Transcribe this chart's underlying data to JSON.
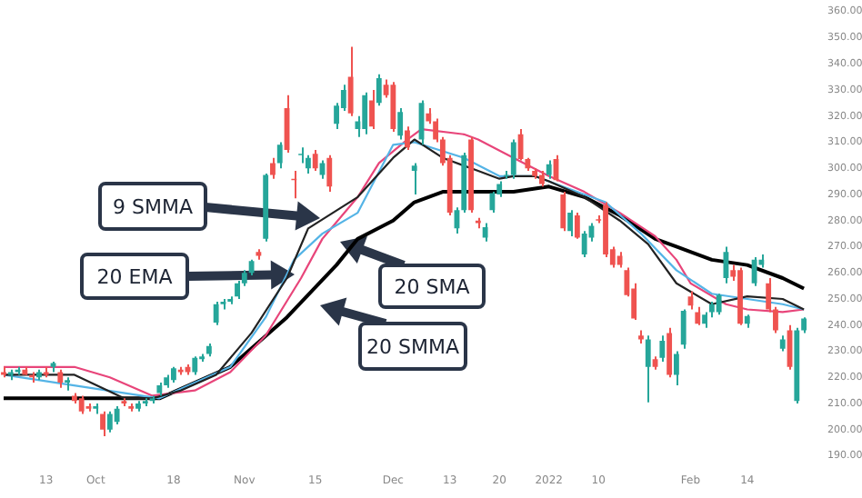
{
  "chart_data": {
    "type": "candlestick",
    "categories": [
      null,
      null,
      null,
      null,
      null,
      null,
      "13",
      null,
      null,
      null,
      null,
      null,
      null,
      "Oct",
      null,
      null,
      null,
      null,
      null,
      null,
      null,
      null,
      null,
      null,
      "18",
      null,
      null,
      null,
      null,
      null,
      null,
      null,
      null,
      null,
      "Nov",
      null,
      null,
      null,
      null,
      null,
      null,
      null,
      null,
      null,
      "15",
      null,
      null,
      null,
      null,
      null,
      null,
      null,
      null,
      null,
      null,
      "Dec",
      null,
      null,
      null,
      null,
      null,
      null,
      null,
      "13",
      null,
      null,
      null,
      null,
      null,
      null,
      "20",
      null,
      null,
      null,
      null,
      null,
      null,
      "2022",
      null,
      null,
      null,
      null,
      null,
      null,
      "10",
      null,
      null,
      null,
      null,
      null,
      null,
      null,
      null,
      null,
      null,
      null,
      null,
      "Feb",
      null,
      null,
      null,
      null,
      null,
      null,
      null,
      "14",
      null,
      null,
      null,
      null,
      null,
      null,
      null,
      null
    ],
    "ohlc": [
      [
        222,
        224,
        220,
        221
      ],
      [
        221,
        223,
        219,
        222
      ],
      [
        222,
        224,
        221,
        223
      ],
      [
        223,
        224,
        221,
        221
      ],
      [
        221,
        222,
        218,
        220
      ],
      [
        220,
        223,
        219,
        222
      ],
      [
        222,
        224,
        220,
        221
      ],
      [
        224,
        226,
        222,
        225.5
      ],
      [
        222,
        223,
        216,
        218
      ],
      [
        218,
        220,
        215,
        219
      ],
      [
        213,
        214,
        210,
        211
      ],
      [
        212,
        213,
        206,
        207
      ],
      [
        209,
        210,
        207,
        208
      ],
      [
        208,
        210,
        206,
        209
      ],
      [
        206,
        207,
        197.5,
        200
      ],
      [
        200,
        207,
        199,
        206
      ],
      [
        203,
        209,
        202,
        208
      ],
      [
        211,
        212,
        209,
        210
      ],
      [
        209,
        210,
        207,
        208
      ],
      [
        208,
        211,
        207,
        210
      ],
      [
        210,
        212,
        209,
        211
      ],
      [
        211,
        213,
        210,
        212
      ],
      [
        214,
        218,
        213,
        217
      ],
      [
        217,
        221,
        216,
        220
      ],
      [
        219,
        224,
        218,
        223.5
      ],
      [
        223,
        224,
        221,
        222
      ],
      [
        224,
        225,
        221,
        222
      ],
      [
        222,
        228,
        221,
        227.5
      ],
      [
        227,
        229,
        226,
        228
      ],
      [
        229,
        233,
        228,
        232
      ],
      [
        241,
        249,
        240,
        248
      ],
      [
        248,
        250,
        246,
        249
      ],
      [
        249,
        251,
        248,
        250
      ],
      [
        251,
        257,
        250,
        256
      ],
      [
        256,
        261,
        255,
        260
      ],
      [
        260,
        265,
        259,
        264.5
      ],
      [
        268,
        269,
        265,
        266.5
      ],
      [
        273,
        298,
        272,
        297.5
      ],
      [
        302,
        304,
        296,
        297.5
      ],
      [
        302,
        310,
        300,
        309
      ],
      [
        323,
        328,
        306,
        307
      ],
      [
        296,
        299,
        288.5,
        295.5
      ],
      [
        305,
        308,
        302,
        305.5
      ],
      [
        300,
        305,
        298,
        304
      ],
      [
        305.5,
        307,
        299,
        300
      ],
      [
        297.5,
        303,
        296,
        302
      ],
      [
        304,
        305,
        291,
        293
      ],
      [
        317,
        325,
        315,
        324
      ],
      [
        323,
        332,
        322,
        330
      ],
      [
        335,
        346.5,
        320,
        321
      ],
      [
        315,
        320,
        312,
        318
      ],
      [
        315,
        329,
        313,
        328
      ],
      [
        326,
        330,
        315,
        316
      ],
      [
        325,
        336,
        324,
        334.5
      ],
      [
        332,
        334,
        327,
        328
      ],
      [
        332,
        333,
        314,
        315
      ],
      [
        312.5,
        323,
        311,
        321.5
      ],
      [
        314.5,
        316,
        307,
        308
      ],
      [
        299,
        302,
        290,
        301
      ],
      [
        311,
        326,
        309,
        325
      ],
      [
        321,
        323,
        317,
        318
      ],
      [
        318,
        319,
        310,
        311
      ],
      [
        311,
        312,
        301,
        302
      ],
      [
        304,
        305,
        282,
        283
      ],
      [
        277,
        285,
        275,
        284
      ],
      [
        284,
        306,
        283,
        305
      ],
      [
        311,
        312,
        283,
        284
      ],
      [
        280,
        281,
        277,
        279
      ],
      [
        273.5,
        279,
        272,
        277.5
      ],
      [
        284,
        291,
        283,
        290.5
      ],
      [
        290,
        295,
        289,
        294
      ],
      [
        297,
        299,
        296,
        297.5
      ],
      [
        297.5,
        311,
        296,
        310
      ],
      [
        313,
        315,
        303,
        303.5
      ],
      [
        303.5,
        304,
        299,
        300
      ],
      [
        299,
        300,
        296,
        297
      ],
      [
        297.5,
        299,
        293,
        294
      ],
      [
        297.5,
        303,
        296,
        301.5
      ],
      [
        303.5,
        305,
        295,
        295.5
      ],
      [
        290,
        291,
        276,
        277
      ],
      [
        276,
        284,
        274,
        283
      ],
      [
        282,
        283,
        273,
        273.5
      ],
      [
        267,
        276,
        266,
        275
      ],
      [
        273.5,
        279,
        272,
        278
      ],
      [
        280.5,
        282,
        279,
        280
      ],
      [
        286,
        287,
        266,
        267
      ],
      [
        269,
        270,
        262,
        263
      ],
      [
        266.5,
        268,
        262,
        263
      ],
      [
        261,
        262,
        251,
        251.5
      ],
      [
        254,
        256,
        242,
        242.5
      ],
      [
        236,
        238,
        233,
        234.5
      ],
      [
        224,
        236,
        210.5,
        234.5
      ],
      [
        227,
        228,
        223,
        224
      ],
      [
        227.5,
        236,
        226,
        234
      ],
      [
        237,
        239,
        220,
        221
      ],
      [
        221,
        230,
        217,
        229
      ],
      [
        232.5,
        246,
        231,
        245.5
      ],
      [
        251,
        253,
        246,
        247.5
      ],
      [
        245,
        247,
        240,
        240.5
      ],
      [
        240.5,
        245,
        239,
        244
      ],
      [
        245,
        249,
        243,
        248
      ],
      [
        245,
        252,
        244,
        251.5
      ],
      [
        258,
        270,
        256,
        268
      ],
      [
        261,
        263,
        257,
        258.5
      ],
      [
        261,
        262,
        240,
        240.5
      ],
      [
        240.5,
        244,
        239,
        243.5
      ],
      [
        256,
        266,
        255,
        265
      ],
      [
        263,
        267,
        262,
        265
      ],
      [
        256,
        258,
        245,
        246
      ],
      [
        246,
        247,
        237,
        238
      ],
      [
        231,
        236,
        230,
        234.5
      ],
      [
        238,
        240,
        223,
        224
      ],
      [
        211,
        239,
        210,
        238
      ],
      [
        238,
        243,
        237,
        242.5
      ]
    ],
    "colors": [
      "#ef5350",
      "#26a69a",
      "#26a69a",
      "#ef5350",
      "#ef5350",
      "#26a69a",
      "#ef5350",
      "#26a69a",
      "#ef5350",
      "#26a69a",
      "#ef5350",
      "#ef5350",
      "#ef5350",
      "#26a69a",
      "#ef5350",
      "#26a69a",
      "#26a69a",
      "#ef5350",
      "#ef5350",
      "#26a69a",
      "#26a69a",
      "#26a69a",
      "#26a69a",
      "#26a69a",
      "#26a69a",
      "#ef5350",
      "#ef5350",
      "#26a69a",
      "#26a69a",
      "#26a69a",
      "#26a69a",
      "#26a69a",
      "#26a69a",
      "#26a69a",
      "#26a69a",
      "#26a69a",
      "#ef5350",
      "#26a69a",
      "#ef5350",
      "#26a69a",
      "#ef5350",
      "#ef5350",
      "#26a69a",
      "#26a69a",
      "#ef5350",
      "#26a69a",
      "#ef5350",
      "#26a69a",
      "#26a69a",
      "#ef5350",
      "#26a69a",
      "#26a69a",
      "#ef5350",
      "#26a69a",
      "#ef5350",
      "#ef5350",
      "#26a69a",
      "#ef5350",
      "#26a69a",
      "#26a69a",
      "#ef5350",
      "#ef5350",
      "#ef5350",
      "#ef5350",
      "#26a69a",
      "#26a69a",
      "#ef5350",
      "#ef5350",
      "#26a69a",
      "#26a69a",
      "#26a69a",
      "#26a69a",
      "#26a69a",
      "#ef5350",
      "#ef5350",
      "#ef5350",
      "#ef5350",
      "#26a69a",
      "#ef5350",
      "#ef5350",
      "#26a69a",
      "#ef5350",
      "#26a69a",
      "#26a69a",
      "#ef5350",
      "#ef5350",
      "#ef5350",
      "#ef5350",
      "#ef5350",
      "#ef5350",
      "#ef5350",
      "#26a69a",
      "#ef5350",
      "#26a69a",
      "#ef5350",
      "#26a69a",
      "#26a69a",
      "#ef5350",
      "#ef5350",
      "#26a69a",
      "#26a69a",
      "#26a69a",
      "#26a69a",
      "#ef5350",
      "#ef5350",
      "#26a69a",
      "#26a69a",
      "#26a69a",
      "#ef5350",
      "#ef5350",
      "#26a69a",
      "#ef5350",
      "#26a69a",
      "#26a69a"
    ],
    "series": [
      {
        "type": "line",
        "color": "#222222",
        "values": [
          221,
          null,
          null,
          null,
          null,
          null,
          null,
          null,
          null,
          null,
          221,
          null,
          null,
          null,
          null,
          null,
          null,
          212,
          null,
          null,
          null,
          212,
          null,
          null,
          null,
          215,
          null,
          null,
          null,
          null,
          221,
          null,
          null,
          null,
          null,
          237,
          null,
          null,
          null,
          null,
          258,
          null,
          null,
          277,
          null,
          null,
          null,
          null,
          null,
          null,
          289,
          null,
          null,
          null,
          null,
          304,
          null,
          null,
          311,
          null,
          null,
          null,
          304,
          null,
          null,
          null,
          null,
          299,
          null,
          null,
          296,
          null,
          297,
          null,
          null,
          297,
          null,
          295,
          null,
          null,
          null,
          null,
          289,
          null,
          null,
          null,
          null,
          280,
          null,
          null,
          null,
          271,
          null,
          null,
          null,
          256,
          null,
          null,
          null,
          null,
          248,
          null,
          null,
          null,
          null,
          251,
          null,
          null,
          null,
          null,
          250,
          null,
          null,
          246
        ]
      },
      {
        "type": "line",
        "color": "#55b4e6",
        "values": [
          221,
          null,
          null,
          null,
          null,
          null,
          null,
          null,
          null,
          null,
          null,
          null,
          null,
          null,
          null,
          null,
          null,
          null,
          null,
          null,
          null,
          null,
          212,
          null,
          null,
          null,
          null,
          null,
          null,
          null,
          null,
          null,
          224,
          null,
          null,
          null,
          null,
          243,
          null,
          null,
          null,
          265,
          null,
          null,
          null,
          275,
          null,
          null,
          null,
          null,
          283,
          null,
          null,
          null,
          null,
          309,
          null,
          null,
          310,
          null,
          null,
          null,
          null,
          null,
          null,
          304,
          null,
          null,
          null,
          null,
          297,
          null,
          null,
          null,
          null,
          297,
          null,
          null,
          null,
          null,
          292,
          null,
          null,
          null,
          null,
          287,
          null,
          null,
          null,
          null,
          275,
          null,
          null,
          null,
          null,
          261,
          null,
          null,
          null,
          null,
          252,
          null,
          null,
          null,
          null,
          250,
          null,
          null,
          null,
          null,
          248,
          null,
          null,
          246
        ]
      },
      {
        "type": "line",
        "color": "#e8457a",
        "values": [
          224,
          null,
          null,
          null,
          null,
          null,
          null,
          null,
          null,
          null,
          224,
          null,
          null,
          null,
          null,
          220,
          null,
          null,
          null,
          null,
          null,
          213,
          null,
          null,
          null,
          null,
          null,
          215,
          null,
          null,
          null,
          null,
          222,
          null,
          null,
          null,
          null,
          236,
          null,
          null,
          null,
          null,
          258,
          null,
          null,
          273,
          null,
          null,
          null,
          null,
          289,
          null,
          null,
          302,
          null,
          null,
          null,
          311,
          null,
          315,
          null,
          null,
          null,
          null,
          null,
          313,
          null,
          311,
          null,
          null,
          null,
          null,
          304,
          null,
          null,
          null,
          null,
          297,
          null,
          null,
          null,
          null,
          291,
          null,
          null,
          null,
          null,
          283,
          null,
          null,
          null,
          null,
          274,
          null,
          null,
          265,
          null,
          256,
          null,
          null,
          null,
          null,
          248,
          null,
          null,
          246,
          null,
          null,
          null,
          null,
          245,
          null,
          null,
          246
        ]
      },
      {
        "type": "line",
        "color": "#000000",
        "values": [
          212,
          null,
          null,
          null,
          null,
          null,
          null,
          null,
          null,
          null,
          null,
          null,
          null,
          null,
          null,
          null,
          null,
          null,
          null,
          null,
          null,
          null,
          212,
          null,
          null,
          null,
          null,
          null,
          null,
          null,
          null,
          null,
          224,
          null,
          null,
          null,
          null,
          null,
          null,
          null,
          243,
          null,
          null,
          null,
          null,
          null,
          null,
          263,
          null,
          null,
          273,
          null,
          null,
          null,
          null,
          280,
          null,
          null,
          287,
          null,
          null,
          null,
          291,
          null,
          null,
          null,
          null,
          291,
          null,
          null,
          null,
          null,
          291,
          null,
          null,
          null,
          null,
          293,
          null,
          null,
          null,
          null,
          289,
          null,
          null,
          null,
          null,
          282,
          null,
          null,
          null,
          null,
          273,
          null,
          null,
          270,
          null,
          null,
          null,
          null,
          265,
          null,
          null,
          null,
          null,
          263,
          null,
          null,
          null,
          null,
          258,
          null,
          null,
          254
        ]
      }
    ],
    "ylim": [
      190,
      360
    ],
    "yticks": [
      {
        "value": 190,
        "label": "190.00"
      },
      {
        "value": 200,
        "label": "200.00"
      },
      {
        "value": 210,
        "label": "210.00"
      },
      {
        "value": 220,
        "label": "220.00"
      },
      {
        "value": 230,
        "label": "230.00"
      },
      {
        "value": 240,
        "label": "240.00"
      },
      {
        "value": 250,
        "label": "250.00"
      },
      {
        "value": 260,
        "label": "260.00"
      },
      {
        "value": 270,
        "label": "270.00"
      },
      {
        "value": 280,
        "label": "280.00"
      },
      {
        "value": 290,
        "label": "290.00"
      },
      {
        "value": 300,
        "label": "300.00"
      },
      {
        "value": 310,
        "label": "310.00"
      },
      {
        "value": 320,
        "label": "320.00"
      },
      {
        "value": 330,
        "label": "330.00"
      },
      {
        "value": 340,
        "label": "340.00"
      },
      {
        "value": 350,
        "label": "350.00"
      },
      {
        "value": 360,
        "label": "360.00"
      }
    ],
    "annotations": [
      "9 SMMA",
      "20 EMA",
      "20 SMA",
      "20 SMMA"
    ]
  }
}
